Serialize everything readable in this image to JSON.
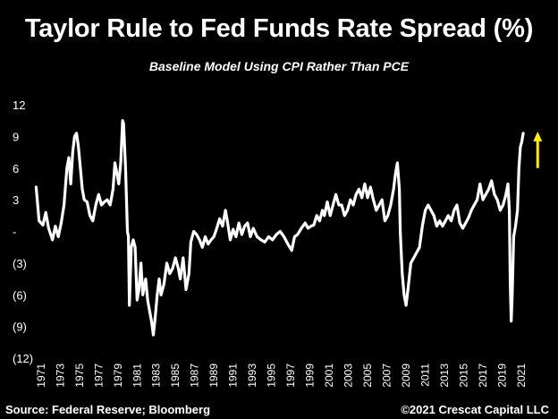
{
  "chart_data": {
    "type": "line",
    "title": "Taylor Rule to Fed Funds Rate Spread (%)",
    "subtitle": "Baseline Model Using CPI Rather Than PCE",
    "xlabel": "",
    "ylabel": "",
    "ylim": [
      -12,
      12
    ],
    "xlim": [
      1970.4,
      2024.2
    ],
    "y_ticks": [
      12,
      9,
      6,
      3,
      0,
      -3,
      -6,
      -9,
      -12
    ],
    "y_tick_labels": [
      "12",
      "9",
      "6",
      "3",
      "-",
      "(3)",
      "(6)",
      "(9)",
      "(12)"
    ],
    "x_tick_labels": [
      "1971",
      "1973",
      "1975",
      "1977",
      "1979",
      "1981",
      "1983",
      "1985",
      "1987",
      "1989",
      "1991",
      "1993",
      "1995",
      "1997",
      "1999",
      "2001",
      "2003",
      "2005",
      "2007",
      "2009",
      "2011",
      "2013",
      "2015",
      "2017",
      "2019",
      "2021"
    ],
    "grid": false,
    "line_color": "#ffffff",
    "arrow_color": "#ffee00",
    "series": [
      {
        "values": [
          [
            1971.0,
            4.2
          ],
          [
            1971.3,
            1.0
          ],
          [
            1971.7,
            0.6
          ],
          [
            1972.0,
            1.8
          ],
          [
            1972.3,
            0.3
          ],
          [
            1972.7,
            -0.8
          ],
          [
            1973.0,
            0.5
          ],
          [
            1973.3,
            -0.5
          ],
          [
            1973.6,
            0.8
          ],
          [
            1973.9,
            2.5
          ],
          [
            1974.2,
            6.0
          ],
          [
            1974.4,
            7.0
          ],
          [
            1974.6,
            4.5
          ],
          [
            1974.8,
            7.5
          ],
          [
            1975.0,
            9.0
          ],
          [
            1975.2,
            9.3
          ],
          [
            1975.4,
            8.0
          ],
          [
            1975.6,
            6.0
          ],
          [
            1975.8,
            4.0
          ],
          [
            1976.0,
            3.0
          ],
          [
            1976.3,
            2.8
          ],
          [
            1976.6,
            1.5
          ],
          [
            1976.9,
            1.0
          ],
          [
            1977.2,
            2.5
          ],
          [
            1977.5,
            3.5
          ],
          [
            1977.8,
            2.5
          ],
          [
            1978.1,
            2.8
          ],
          [
            1978.4,
            3.0
          ],
          [
            1978.7,
            2.5
          ],
          [
            1979.0,
            4.0
          ],
          [
            1979.2,
            6.5
          ],
          [
            1979.4,
            5.5
          ],
          [
            1979.6,
            4.5
          ],
          [
            1979.8,
            6.5
          ],
          [
            1980.0,
            10.5
          ],
          [
            1980.1,
            10.2
          ],
          [
            1980.3,
            6.0
          ],
          [
            1980.5,
            0.0
          ],
          [
            1980.6,
            -0.5
          ],
          [
            1980.7,
            -7.0
          ],
          [
            1980.9,
            -1.5
          ],
          [
            1981.1,
            -0.8
          ],
          [
            1981.3,
            -1.5
          ],
          [
            1981.5,
            -6.5
          ],
          [
            1981.7,
            -5.5
          ],
          [
            1981.9,
            -3.0
          ],
          [
            1982.1,
            -6.0
          ],
          [
            1982.4,
            -4.5
          ],
          [
            1982.6,
            -6.5
          ],
          [
            1982.8,
            -7.5
          ],
          [
            1983.0,
            -8.5
          ],
          [
            1983.2,
            -9.8
          ],
          [
            1983.4,
            -8.0
          ],
          [
            1983.6,
            -6.0
          ],
          [
            1983.8,
            -4.5
          ],
          [
            1984.0,
            -6.0
          ],
          [
            1984.3,
            -5.0
          ],
          [
            1984.6,
            -3.0
          ],
          [
            1984.9,
            -4.0
          ],
          [
            1985.2,
            -3.5
          ],
          [
            1985.5,
            -2.5
          ],
          [
            1985.8,
            -3.5
          ],
          [
            1986.0,
            -4.5
          ],
          [
            1986.3,
            -2.5
          ],
          [
            1986.6,
            -5.5
          ],
          [
            1986.9,
            -4.0
          ],
          [
            1987.1,
            -1.0
          ],
          [
            1987.4,
            0.0
          ],
          [
            1987.7,
            -0.3
          ],
          [
            1988.0,
            -0.8
          ],
          [
            1988.3,
            -1.5
          ],
          [
            1988.6,
            -0.5
          ],
          [
            1988.9,
            -1.2
          ],
          [
            1989.2,
            -0.8
          ],
          [
            1989.5,
            -0.5
          ],
          [
            1989.8,
            0.3
          ],
          [
            1990.1,
            1.2
          ],
          [
            1990.4,
            0.5
          ],
          [
            1990.7,
            2.0
          ],
          [
            1990.9,
            1.0
          ],
          [
            1991.2,
            -0.8
          ],
          [
            1991.5,
            0.2
          ],
          [
            1991.8,
            -0.5
          ],
          [
            1992.1,
            0.8
          ],
          [
            1992.4,
            -0.3
          ],
          [
            1992.7,
            0.5
          ],
          [
            1993.0,
            0.8
          ],
          [
            1993.3,
            -0.5
          ],
          [
            1993.6,
            0.3
          ],
          [
            1994.0,
            -0.5
          ],
          [
            1994.4,
            -0.8
          ],
          [
            1994.8,
            -1.0
          ],
          [
            1995.2,
            -0.5
          ],
          [
            1995.6,
            -0.8
          ],
          [
            1996.0,
            -0.3
          ],
          [
            1996.4,
            0.0
          ],
          [
            1996.8,
            -0.5
          ],
          [
            1997.2,
            -1.2
          ],
          [
            1997.6,
            -1.8
          ],
          [
            1997.9,
            -0.5
          ],
          [
            1998.2,
            -0.3
          ],
          [
            1998.6,
            0.3
          ],
          [
            1999.0,
            0.8
          ],
          [
            1999.3,
            0.3
          ],
          [
            1999.6,
            0.5
          ],
          [
            1999.9,
            0.6
          ],
          [
            2000.2,
            1.5
          ],
          [
            2000.5,
            1.0
          ],
          [
            2000.8,
            2.0
          ],
          [
            2001.0,
            1.5
          ],
          [
            2001.3,
            2.8
          ],
          [
            2001.6,
            1.5
          ],
          [
            2001.9,
            2.5
          ],
          [
            2002.2,
            3.5
          ],
          [
            2002.5,
            2.5
          ],
          [
            2002.8,
            2.5
          ],
          [
            2003.1,
            1.5
          ],
          [
            2003.4,
            2.0
          ],
          [
            2003.7,
            3.0
          ],
          [
            2004.0,
            2.5
          ],
          [
            2004.3,
            3.5
          ],
          [
            2004.6,
            4.0
          ],
          [
            2004.9,
            3.2
          ],
          [
            2005.2,
            4.5
          ],
          [
            2005.5,
            3.2
          ],
          [
            2005.8,
            4.2
          ],
          [
            2006.1,
            3.0
          ],
          [
            2006.4,
            2.0
          ],
          [
            2006.7,
            2.5
          ],
          [
            2007.0,
            3.0
          ],
          [
            2007.3,
            1.0
          ],
          [
            2007.6,
            1.5
          ],
          [
            2007.9,
            2.5
          ],
          [
            2008.2,
            4.0
          ],
          [
            2008.4,
            5.5
          ],
          [
            2008.6,
            6.5
          ],
          [
            2008.8,
            4.0
          ],
          [
            2008.9,
            0.0
          ],
          [
            2009.1,
            -4.0
          ],
          [
            2009.3,
            -6.0
          ],
          [
            2009.5,
            -7.0
          ],
          [
            2009.7,
            -5.5
          ],
          [
            2010.0,
            -3.0
          ],
          [
            2010.3,
            -2.5
          ],
          [
            2010.6,
            -2.0
          ],
          [
            2010.9,
            -1.5
          ],
          [
            2011.2,
            0.5
          ],
          [
            2011.5,
            2.0
          ],
          [
            2011.8,
            2.5
          ],
          [
            2012.1,
            2.0
          ],
          [
            2012.4,
            1.5
          ],
          [
            2012.7,
            0.5
          ],
          [
            2013.0,
            1.0
          ],
          [
            2013.3,
            0.5
          ],
          [
            2013.6,
            1.0
          ],
          [
            2013.9,
            1.5
          ],
          [
            2014.2,
            1.0
          ],
          [
            2014.5,
            2.0
          ],
          [
            2014.8,
            2.5
          ],
          [
            2015.1,
            0.8
          ],
          [
            2015.4,
            0.3
          ],
          [
            2015.7,
            0.8
          ],
          [
            2016.0,
            1.3
          ],
          [
            2016.3,
            2.0
          ],
          [
            2016.6,
            2.5
          ],
          [
            2016.9,
            3.0
          ],
          [
            2017.2,
            4.5
          ],
          [
            2017.5,
            3.0
          ],
          [
            2017.8,
            3.5
          ],
          [
            2018.1,
            4.0
          ],
          [
            2018.4,
            4.8
          ],
          [
            2018.7,
            3.5
          ],
          [
            2019.0,
            3.0
          ],
          [
            2019.3,
            2.0
          ],
          [
            2019.6,
            2.5
          ],
          [
            2019.9,
            3.5
          ],
          [
            2020.1,
            4.5
          ],
          [
            2020.25,
            2.0
          ],
          [
            2020.35,
            -5.0
          ],
          [
            2020.45,
            -8.5
          ],
          [
            2020.55,
            -6.0
          ],
          [
            2020.7,
            -0.5
          ],
          [
            2020.9,
            0.5
          ],
          [
            2021.1,
            2.0
          ],
          [
            2021.25,
            6.0
          ],
          [
            2021.4,
            8.0
          ],
          [
            2021.55,
            8.5
          ],
          [
            2021.7,
            9.3
          ]
        ]
      }
    ],
    "annotations": [
      {
        "type": "arrow",
        "x": 2023.2,
        "y_from": 6.0,
        "y_to": 9.3,
        "direction": "up"
      }
    ]
  },
  "footer": {
    "source": "Source: Federal Reserve; Bloomberg",
    "copyright": "©2021 Crescat Capital LLC"
  }
}
